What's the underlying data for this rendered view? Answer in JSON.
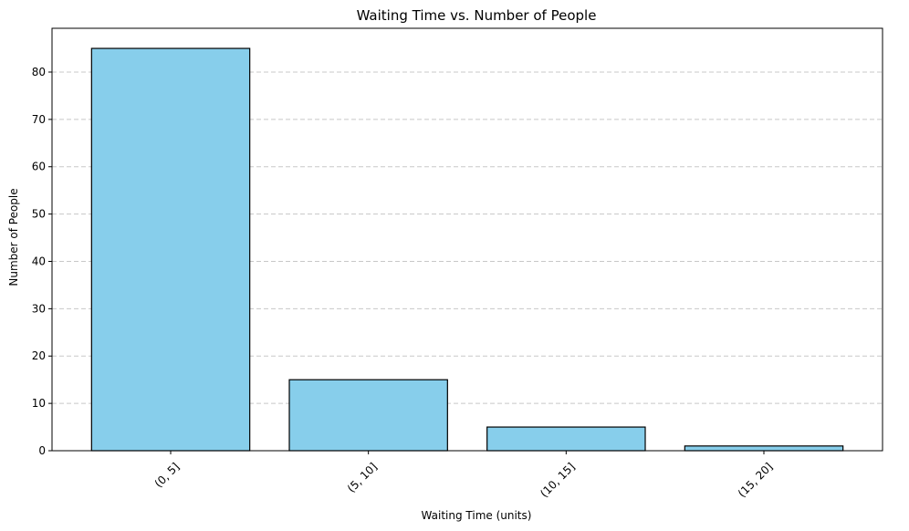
{
  "chart_data": {
    "type": "bar",
    "title": "Waiting Time vs. Number of People",
    "xlabel": "Waiting Time (units)",
    "ylabel": "Number of People",
    "categories": [
      "(0, 5]",
      "(5, 10]",
      "(10, 15]",
      "(15, 20]"
    ],
    "values": [
      85,
      15,
      5,
      1
    ],
    "ylim": [
      0,
      89.25
    ],
    "yticks": [
      0,
      10,
      20,
      30,
      40,
      50,
      60,
      70,
      80
    ],
    "grid": "y-dashed",
    "bar_color": "#87ceeb",
    "edge_color": "#000000",
    "grid_color": "#c8c8c8",
    "x_tick_rotation": 45
  }
}
